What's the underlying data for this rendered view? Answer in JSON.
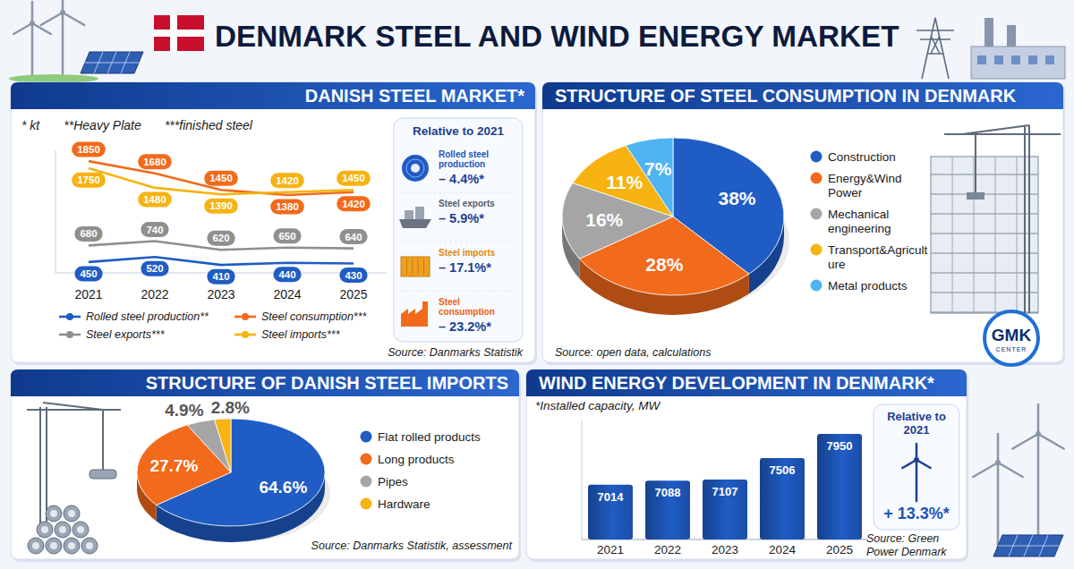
{
  "header": {
    "title": "DENMARK STEEL AND WIND ENERGY MARKET"
  },
  "logo": {
    "lines": [
      "GMK",
      "CENTER"
    ]
  },
  "chart_data": [
    {
      "type": "line",
      "title": "DANISH STEEL MARKET*",
      "notes": [
        "* kt",
        "**Heavy Plate",
        "***finished steel"
      ],
      "source": "Source: Danmarks Statistik",
      "categories": [
        "2021",
        "2022",
        "2023",
        "2024",
        "2025"
      ],
      "series": [
        {
          "name": "Rolled steel production**",
          "color": "#1f5cc4",
          "values": [
            450,
            520,
            410,
            440,
            430
          ]
        },
        {
          "name": "Steel consumption***",
          "color": "#f26a1b",
          "values": [
            1850,
            1680,
            1450,
            1380,
            1420
          ]
        },
        {
          "name": "Steel exports***",
          "color": "#8f8f8f",
          "values": [
            680,
            740,
            620,
            650,
            640
          ]
        },
        {
          "name": "Steel imports***",
          "color": "#f6b311",
          "values": [
            1750,
            1480,
            1390,
            1420,
            1450
          ]
        }
      ],
      "ylim": [
        300,
        2000
      ],
      "tick_labels": "x",
      "data_labels": true,
      "legend": "bottom",
      "annotations": {
        "title": "Relative to 2021",
        "items": [
          {
            "label": "Rolled steel production",
            "text": "– 4.4%*"
          },
          {
            "label": "Steel exports",
            "text": "– 5.9%*"
          },
          {
            "label": "Steel imports",
            "text": "– 17.1%*"
          },
          {
            "label": "Steel consumption",
            "text": "– 23.2%*"
          }
        ]
      }
    },
    {
      "type": "pie",
      "title": "STRUCTURE OF STEEL CONSUMPTION IN DENMARK",
      "source": "Source: open data, calculations",
      "categories": [
        "Construction",
        "Energy&Wind Power",
        "Mechanical engineering",
        "Transport&Agriculture",
        "Metal products"
      ],
      "values": [
        38,
        28,
        16,
        11,
        7
      ],
      "value_labels": [
        "38%",
        "28%",
        "16%",
        "11%",
        "7%"
      ],
      "colors": [
        "#1f5cc4",
        "#f26a1b",
        "#a5a5a5",
        "#f6b311",
        "#4fb4ef"
      ],
      "data_labels": true,
      "legend": "right"
    },
    {
      "type": "pie",
      "title": "STRUCTURE OF DANISH STEEL IMPORTS",
      "source": "Source: Danmarks Statistik, assessment",
      "categories": [
        "Flat rolled products",
        "Long products",
        "Pipes",
        "Hardware"
      ],
      "values": [
        64.6,
        27.7,
        4.9,
        2.8
      ],
      "value_labels": [
        "64.6%",
        "27.7%",
        "4.9%",
        "2.8%"
      ],
      "colors": [
        "#1f5cc4",
        "#f26a1b",
        "#a5a5a5",
        "#f6b311"
      ],
      "data_labels": true,
      "legend": "right"
    },
    {
      "type": "bar",
      "title": "WIND ENERGY DEVELOPMENT IN DENMARK*",
      "subtitle": "*Installed capacity, MW",
      "source": "Source: Green Power Denmark",
      "categories": [
        "2021",
        "2022",
        "2023",
        "2024",
        "2025"
      ],
      "values": [
        7014,
        7088,
        7107,
        7506,
        7950
      ],
      "color": "#1f5cc4",
      "ylim": [
        6000,
        8200
      ],
      "tick_labels": "x",
      "data_labels": true,
      "annotations": {
        "title": "Relative to 2021",
        "items": [
          {
            "text": "+ 13.3%*"
          }
        ]
      }
    }
  ]
}
